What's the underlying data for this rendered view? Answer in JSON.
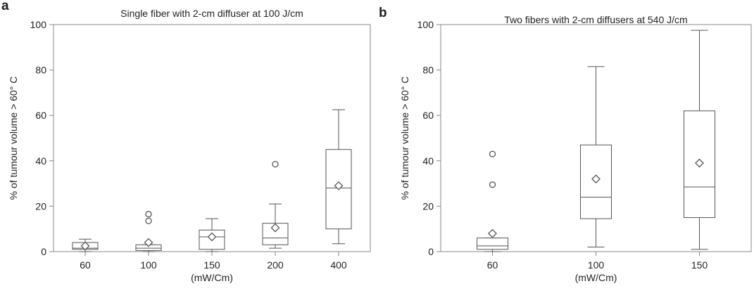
{
  "chart_data": [
    {
      "type": "box",
      "panel_label": "a",
      "title": "Single fiber with 2-cm diffuser at 100 J/cm",
      "xlabel": "(mW/Cm)",
      "ylabel": "% of tumour volume > 60° C",
      "ylim": [
        0,
        100
      ],
      "yticks": [
        0,
        20,
        40,
        60,
        80,
        100
      ],
      "categories": [
        "60",
        "100",
        "150",
        "200",
        "400"
      ],
      "boxes": [
        {
          "whisker_low": 0,
          "q1": 1,
          "median": 1.5,
          "q3": 4,
          "whisker_high": 5.5,
          "mean": 2.5,
          "outliers": []
        },
        {
          "whisker_low": 0,
          "q1": 0.5,
          "median": 1.5,
          "q3": 3,
          "whisker_high": 3,
          "mean": 4,
          "outliers": [
            13.5,
            16.5
          ]
        },
        {
          "whisker_low": 0,
          "q1": 1,
          "median": 6.5,
          "q3": 9.5,
          "whisker_high": 14.5,
          "mean": 6.5,
          "outliers": []
        },
        {
          "whisker_low": 1.5,
          "q1": 3,
          "median": 6,
          "q3": 12.5,
          "whisker_high": 21,
          "mean": 10.5,
          "outliers": [
            38.5
          ]
        },
        {
          "whisker_low": 3.5,
          "q1": 10,
          "median": 28,
          "q3": 45,
          "whisker_high": 62.5,
          "mean": 29,
          "outliers": []
        }
      ]
    },
    {
      "type": "box",
      "panel_label": "b",
      "title": "Two fibers with 2-cm diffusers at 540 J/cm",
      "xlabel": "(mW/Cm)",
      "ylabel": "% of tumour volume > 60° C",
      "ylim": [
        0,
        100
      ],
      "yticks": [
        0,
        20,
        40,
        60,
        80,
        100
      ],
      "categories": [
        "60",
        "100",
        "150"
      ],
      "boxes": [
        {
          "whisker_low": 0,
          "q1": 1,
          "median": 2.5,
          "q3": 6,
          "whisker_high": 6,
          "mean": 8,
          "outliers": [
            29.5,
            43
          ]
        },
        {
          "whisker_low": 2,
          "q1": 14.5,
          "median": 24,
          "q3": 47,
          "whisker_high": 81.5,
          "mean": 32,
          "outliers": []
        },
        {
          "whisker_low": 1,
          "q1": 15,
          "median": 28.5,
          "q3": 62,
          "whisker_high": 97.5,
          "mean": 39,
          "outliers": []
        }
      ]
    }
  ]
}
